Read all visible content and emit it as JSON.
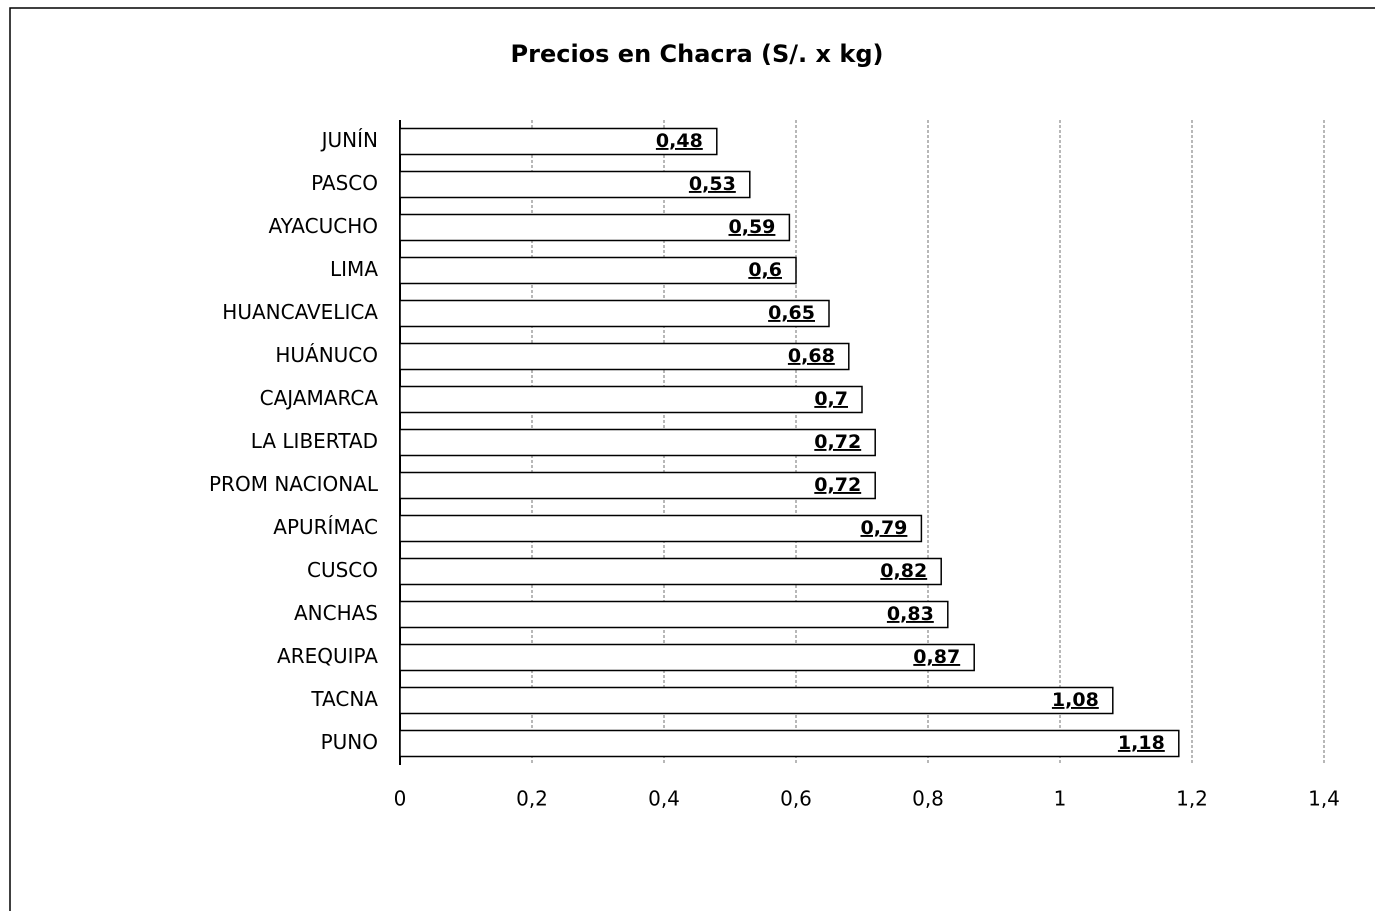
{
  "chart_data": {
    "type": "barh",
    "title": "Precios en Chacra (S/. x kg)",
    "categories": [
      "JUNÍN",
      "PASCO",
      "AYACUCHO",
      "LIMA",
      "HUANCAVELICA",
      "HUÁNUCO",
      "CAJAMARCA",
      "LA LIBERTAD",
      "PROM NACIONAL",
      "APURÍMAC",
      "CUSCO",
      "ANCHAS",
      "AREQUIPA",
      "TACNA",
      "PUNO"
    ],
    "values": [
      0.48,
      0.53,
      0.59,
      0.6,
      0.65,
      0.68,
      0.7,
      0.72,
      0.72,
      0.79,
      0.82,
      0.83,
      0.87,
      1.08,
      1.18
    ],
    "value_labels": [
      "0,48",
      "0,53",
      "0,59",
      "0,6",
      "0,65",
      "0,68",
      "0,7",
      "0,72",
      "0,72",
      "0,79",
      "0,82",
      "0,83",
      "0,87",
      "1,08",
      "1,18"
    ],
    "color": "#ffffff",
    "xlim": [
      0,
      1.4
    ],
    "xticks": [
      0,
      {
        "value": 0.2,
        "label": "0,2"
      },
      {
        "value": 0.4,
        "label": "0,4"
      },
      {
        "value": 0.6,
        "label": "0,6"
      },
      {
        "value": 0.8,
        "label": "0,8"
      },
      1,
      {
        "value": 1.2,
        "label": "1,2"
      },
      {
        "value": 1.4,
        "label": "1,4"
      }
    ],
    "grid": true
  }
}
